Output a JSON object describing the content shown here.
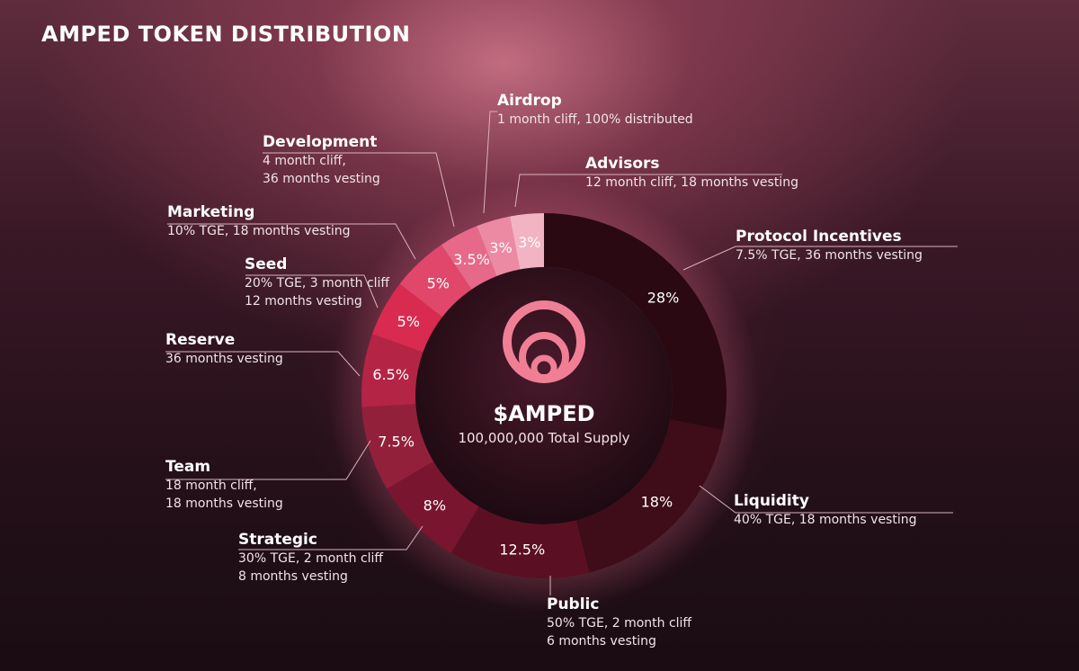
{
  "title": "AMPED TOKEN DISTRIBUTION",
  "center": {
    "token": "$AMPED",
    "supply": "100,000,000 Total Supply"
  },
  "colors": {
    "logo": "#f07f96",
    "leader_line": "#d9b3bd"
  },
  "chart_data": {
    "type": "pie",
    "variant": "donut",
    "start": "top, clockwise",
    "slices": [
      {
        "label": "Protocol Incentives",
        "value": 28,
        "value_label": "28%",
        "desc": [
          "7.5% TGE, 36 months vesting"
        ],
        "color": "#2a0912"
      },
      {
        "label": "Liquidity",
        "value": 18,
        "value_label": "18%",
        "desc": [
          "40% TGE, 18 months vesting"
        ],
        "color": "#3f0c19"
      },
      {
        "label": "Public",
        "value": 12.5,
        "value_label": "12.5%",
        "desc": [
          "50% TGE, 2 month cliff",
          "6 months vesting"
        ],
        "color": "#5a1022"
      },
      {
        "label": "Strategic",
        "value": 8,
        "value_label": "8%",
        "desc": [
          "30% TGE, 2 month cliff",
          "8 months vesting"
        ],
        "color": "#7a1530"
      },
      {
        "label": "Team",
        "value": 7.5,
        "value_label": "7.5%",
        "desc": [
          "18 month cliff,",
          "18 months vesting"
        ],
        "color": "#93203b"
      },
      {
        "label": "Reserve",
        "value": 6.5,
        "value_label": "6.5%",
        "desc": [
          "36 months vesting"
        ],
        "color": "#b32445"
      },
      {
        "label": "Seed",
        "value": 5,
        "value_label": "5%",
        "desc": [
          "20% TGE, 3 month cliff",
          "12 months vesting"
        ],
        "color": "#d92b4f"
      },
      {
        "label": "Marketing",
        "value": 5,
        "value_label": "5%",
        "desc": [
          "10% TGE, 18 months vesting"
        ],
        "color": "#e0476a"
      },
      {
        "label": "Development",
        "value": 3.5,
        "value_label": "3.5%",
        "desc": [
          "4 month cliff,",
          "36 months vesting"
        ],
        "color": "#e6698a"
      },
      {
        "label": "Airdrop",
        "value": 3,
        "value_label": "3%",
        "desc": [
          "1 month cliff, 100% distributed"
        ],
        "color": "#ec8aa3"
      },
      {
        "label": "Advisors",
        "value": 3,
        "value_label": "3%",
        "desc": [
          "12 month cliff, 18 months vesting"
        ],
        "color": "#f2b3c3"
      }
    ]
  }
}
